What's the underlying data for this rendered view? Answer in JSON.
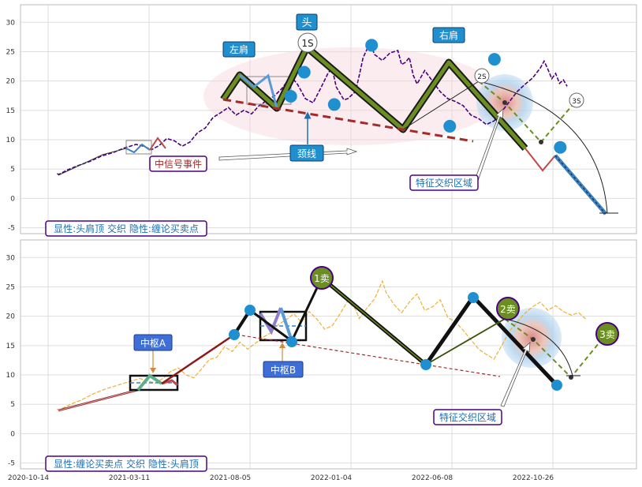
{
  "chart_data": [
    {
      "type": "line",
      "panel": "top",
      "ylim": [
        -6,
        33
      ],
      "yticks": [
        -5,
        0,
        5,
        10,
        15,
        20,
        25,
        30
      ],
      "grid": true,
      "colors": {
        "price": "#4b0082",
        "pattern": "#6b8e23",
        "neckline": "#a52a2a",
        "node": "#1f8fd0",
        "prediction": "#6b8e23",
        "zone": "#9fc8ea"
      },
      "price_trace": [
        [
          -0.5,
          4.2
        ],
        [
          0,
          4.1
        ],
        [
          2,
          4.8
        ],
        [
          5,
          5.6
        ],
        [
          8,
          6.3
        ],
        [
          11,
          7.2
        ],
        [
          14,
          7.8
        ],
        [
          17,
          8.6
        ],
        [
          20,
          9.2
        ],
        [
          22,
          8.9
        ],
        [
          24,
          8.3
        ],
        [
          26,
          9.0
        ],
        [
          28,
          10.2
        ],
        [
          30,
          9.8
        ],
        [
          32,
          8.9
        ],
        [
          34,
          9.6
        ],
        [
          36,
          11.2
        ],
        [
          38,
          12.0
        ],
        [
          40,
          13.8
        ],
        [
          42,
          14.6
        ],
        [
          44,
          15.5
        ],
        [
          46,
          14.2
        ],
        [
          48,
          15.0
        ],
        [
          50,
          14.4
        ],
        [
          52,
          15.8
        ],
        [
          54,
          16.7
        ],
        [
          56,
          17.5
        ],
        [
          58,
          18.8
        ],
        [
          59,
          19.7
        ],
        [
          60,
          19.0
        ],
        [
          61,
          20.2
        ],
        [
          62,
          19.4
        ],
        [
          64,
          17.0
        ],
        [
          66,
          16.3
        ],
        [
          68,
          18.8
        ],
        [
          70,
          21.5
        ],
        [
          71,
          22.0
        ],
        [
          72,
          19.0
        ],
        [
          74,
          16.8
        ],
        [
          75,
          17.0
        ],
        [
          77,
          18.2
        ],
        [
          78,
          21.0
        ],
        [
          79,
          24.0
        ],
        [
          80,
          25.4
        ],
        [
          81,
          26.0
        ],
        [
          82,
          24.5
        ],
        [
          84,
          23.5
        ],
        [
          86,
          24.8
        ],
        [
          88,
          25.2
        ],
        [
          89,
          22.8
        ],
        [
          90,
          23.2
        ],
        [
          91,
          24.0
        ],
        [
          92,
          21.0
        ],
        [
          93,
          19.5
        ],
        [
          95,
          21.8
        ],
        [
          97,
          20.0
        ],
        [
          99,
          18.2
        ],
        [
          101,
          17.0
        ],
        [
          103,
          16.5
        ],
        [
          105,
          15.8
        ],
        [
          107,
          14.2
        ],
        [
          109,
          13.6
        ],
        [
          111,
          12.6
        ],
        [
          113,
          13.2
        ],
        [
          115,
          14.8
        ],
        [
          117,
          16.5
        ],
        [
          119,
          18.2
        ],
        [
          121,
          19.4
        ],
        [
          123,
          20.5
        ],
        [
          125,
          22.2
        ],
        [
          126,
          23.4
        ],
        [
          127,
          22.0
        ],
        [
          128,
          20.4
        ],
        [
          129,
          21.3
        ],
        [
          130,
          19.6
        ],
        [
          131,
          20.2
        ],
        [
          132,
          19.1
        ]
      ],
      "nodes": [
        {
          "x": 60.2,
          "y": 17.4,
          "label": ""
        },
        {
          "x": 63.7,
          "y": 21.5,
          "label": "左肩"
        },
        {
          "x": 71.5,
          "y": 16.0,
          "label": ""
        },
        {
          "x": 81.2,
          "y": 26.1,
          "label": "头"
        },
        {
          "x": 101.5,
          "y": 12.3,
          "label": ""
        },
        {
          "x": 113.1,
          "y": 23.7,
          "label": "右肩"
        },
        {
          "x": 130.2,
          "y": 8.7,
          "label": ""
        }
      ],
      "shoulder_labels": [
        "左肩",
        "头",
        "右肩"
      ],
      "neckline_label": "颈线",
      "neckline": [
        [
          60.2,
          17.4
        ],
        [
          127.5,
          10.2
        ]
      ],
      "markers": [
        "1S",
        "2S",
        "3S"
      ],
      "event_label": "中信号事件",
      "zone_label": "特征交织区域",
      "legend": "显性:头肩顶 交织 隐性:缠论买卖点"
    },
    {
      "type": "line",
      "panel": "bottom",
      "ylim": [
        -6,
        33
      ],
      "yticks": [
        -5,
        0,
        5,
        10,
        15,
        20,
        25,
        30
      ],
      "grid": true,
      "x_tick_labels": [
        "2020-10-14",
        "2021-03-11",
        "2021-08-05",
        "2022-01-04",
        "2022-06-08",
        "2022-10-26"
      ],
      "colors": {
        "price": "#f0b030",
        "stroke": "#222222",
        "neckline": "#a52a2a",
        "node": "#1f8fd0",
        "sell": "#5e8e1e",
        "zone": "#9fc8ea"
      },
      "price_trace": [
        [
          -0.5,
          4.2
        ],
        [
          0,
          4.0
        ],
        [
          3,
          5.0
        ],
        [
          6,
          5.8
        ],
        [
          9,
          6.8
        ],
        [
          12,
          7.6
        ],
        [
          15,
          8.2
        ],
        [
          18,
          8.8
        ],
        [
          21,
          9.4
        ],
        [
          23,
          9.0
        ],
        [
          25,
          8.6
        ],
        [
          27,
          9.4
        ],
        [
          29,
          10.6
        ],
        [
          31,
          11.2
        ],
        [
          33,
          10.0
        ],
        [
          35,
          9.5
        ],
        [
          37,
          11.0
        ],
        [
          39,
          12.6
        ],
        [
          41,
          13.0
        ],
        [
          43,
          14.8
        ],
        [
          45,
          14.0
        ],
        [
          47,
          15.6
        ],
        [
          49,
          14.4
        ],
        [
          51,
          15.4
        ],
        [
          53,
          16.4
        ],
        [
          55,
          17.2
        ],
        [
          57,
          18.6
        ],
        [
          59,
          19.4
        ],
        [
          61,
          20.4
        ],
        [
          63,
          19.0
        ],
        [
          65,
          20.8
        ],
        [
          67,
          19.5
        ],
        [
          69,
          17.8
        ],
        [
          71,
          18.4
        ],
        [
          73,
          20.4
        ],
        [
          75,
          22.6
        ],
        [
          77,
          21.2
        ],
        [
          78,
          19.6
        ],
        [
          80,
          21.4
        ],
        [
          82,
          23.0
        ],
        [
          84,
          26.0
        ],
        [
          85,
          24.0
        ],
        [
          87,
          22.0
        ],
        [
          89,
          20.6
        ],
        [
          91,
          22.4
        ],
        [
          93,
          23.8
        ],
        [
          95,
          21.0
        ],
        [
          97,
          21.6
        ],
        [
          99,
          22.8
        ],
        [
          101,
          19.8
        ],
        [
          103,
          19.0
        ],
        [
          105,
          17.6
        ],
        [
          107,
          16.0
        ],
        [
          109,
          14.4
        ],
        [
          111,
          13.5
        ],
        [
          113,
          12.7
        ],
        [
          115,
          15.0
        ],
        [
          117,
          17.5
        ],
        [
          119,
          19.0
        ],
        [
          121,
          20.5
        ],
        [
          123,
          21.6
        ],
        [
          125,
          22.4
        ],
        [
          127,
          21.0
        ],
        [
          129,
          21.8
        ],
        [
          131,
          20.8
        ],
        [
          133,
          20.2
        ],
        [
          135,
          20.6
        ],
        [
          137,
          19.4
        ]
      ],
      "center_labels": [
        "中枢A",
        "中枢B"
      ],
      "sell_labels": [
        "1卖",
        "2卖",
        "3卖"
      ],
      "zone_label": "特征交织区域",
      "legend": "显性:缠论买卖点 交织 隐性:头肩顶"
    }
  ]
}
